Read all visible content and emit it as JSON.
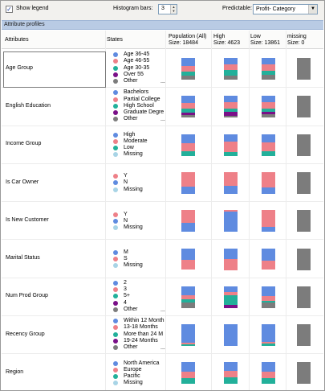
{
  "toolbar": {
    "show_legend_label": "Show legend",
    "show_legend_checked": true,
    "histogram_label": "Histogram bars:",
    "histogram_value": "3",
    "predictable_label": "Predictable:",
    "predictable_value": "Profit- Category"
  },
  "section_title": "Attribute profiles",
  "headers": {
    "attributes": "Attributes",
    "states": "States",
    "population": "Population (All)",
    "population_size": "Size: 18484",
    "high": "High",
    "high_size": "Size: 4623",
    "low": "Low",
    "low_size": "Size: 13861",
    "missing": "missing",
    "missing_size": "Size: 0"
  },
  "colors": {
    "blue": "#5f8be0",
    "pink": "#ee8088",
    "teal": "#22b09a",
    "purple": "#7a1088",
    "gray": "#7c7c7c",
    "lightblue": "#a8d4e6"
  },
  "ellipsis": "...",
  "rows": [
    {
      "attribute": "Age Group",
      "selected": true,
      "states": [
        {
          "label": "Age 36-45",
          "color": "blue"
        },
        {
          "label": "Age 46-55",
          "color": "pink"
        },
        {
          "label": "Age 30-35",
          "color": "teal"
        },
        {
          "label": "Over 55",
          "color": "purple"
        },
        {
          "label": "Other",
          "color": "gray"
        }
      ],
      "has_more": true,
      "bars": {
        "population": [
          {
            "c": "blue",
            "v": 0.36
          },
          {
            "c": "pink",
            "v": 0.28
          },
          {
            "c": "teal",
            "v": 0.18
          },
          {
            "c": "gray",
            "v": 0.18
          }
        ],
        "high": [
          {
            "c": "blue",
            "v": 0.28
          },
          {
            "c": "pink",
            "v": 0.28
          },
          {
            "c": "teal",
            "v": 0.24
          },
          {
            "c": "gray",
            "v": 0.2
          }
        ],
        "low": [
          {
            "c": "blue",
            "v": 0.3
          },
          {
            "c": "pink",
            "v": 0.3
          },
          {
            "c": "teal",
            "v": 0.18
          },
          {
            "c": "gray",
            "v": 0.22
          }
        ],
        "missing": [
          {
            "c": "gray",
            "v": 1.0
          }
        ]
      }
    },
    {
      "attribute": "English Education",
      "selected": false,
      "states": [
        {
          "label": "Bachelors",
          "color": "blue"
        },
        {
          "label": "Partial College",
          "color": "pink"
        },
        {
          "label": "High School",
          "color": "teal"
        },
        {
          "label": "Graduate Degre",
          "color": "purple"
        },
        {
          "label": "Other",
          "color": "gray"
        }
      ],
      "has_more": true,
      "bars": {
        "population": [
          {
            "c": "blue",
            "v": 0.32
          },
          {
            "c": "pink",
            "v": 0.28
          },
          {
            "c": "teal",
            "v": 0.18
          },
          {
            "c": "purple",
            "v": 0.1
          },
          {
            "c": "gray",
            "v": 0.12
          }
        ],
        "high": [
          {
            "c": "blue",
            "v": 0.3
          },
          {
            "c": "pink",
            "v": 0.3
          },
          {
            "c": "teal",
            "v": 0.12
          },
          {
            "c": "purple",
            "v": 0.18
          },
          {
            "c": "gray",
            "v": 0.1
          }
        ],
        "low": [
          {
            "c": "blue",
            "v": 0.28
          },
          {
            "c": "pink",
            "v": 0.3
          },
          {
            "c": "teal",
            "v": 0.16
          },
          {
            "c": "purple",
            "v": 0.12
          },
          {
            "c": "gray",
            "v": 0.14
          }
        ],
        "missing": [
          {
            "c": "gray",
            "v": 1.0
          }
        ]
      }
    },
    {
      "attribute": "Income Group",
      "selected": false,
      "states": [
        {
          "label": "High",
          "color": "blue"
        },
        {
          "label": "Moderate",
          "color": "pink"
        },
        {
          "label": "Low",
          "color": "teal"
        },
        {
          "label": "Missing",
          "color": "lightblue"
        }
      ],
      "has_more": false,
      "bars": {
        "population": [
          {
            "c": "blue",
            "v": 0.42
          },
          {
            "c": "pink",
            "v": 0.38
          },
          {
            "c": "teal",
            "v": 0.2
          }
        ],
        "high": [
          {
            "c": "blue",
            "v": 0.36
          },
          {
            "c": "pink",
            "v": 0.46
          },
          {
            "c": "teal",
            "v": 0.18
          }
        ],
        "low": [
          {
            "c": "blue",
            "v": 0.4
          },
          {
            "c": "pink",
            "v": 0.38
          },
          {
            "c": "teal",
            "v": 0.22
          }
        ],
        "missing": [
          {
            "c": "gray",
            "v": 1.0
          }
        ]
      }
    },
    {
      "attribute": "Is Car Owner",
      "selected": false,
      "states": [
        {
          "label": "Y",
          "color": "pink"
        },
        {
          "label": "N",
          "color": "blue"
        },
        {
          "label": "Missing",
          "color": "lightblue"
        }
      ],
      "has_more": false,
      "bars": {
        "population": [
          {
            "c": "pink",
            "v": 0.68
          },
          {
            "c": "blue",
            "v": 0.32
          }
        ],
        "high": [
          {
            "c": "pink",
            "v": 0.64
          },
          {
            "c": "blue",
            "v": 0.36
          }
        ],
        "low": [
          {
            "c": "pink",
            "v": 0.7
          },
          {
            "c": "blue",
            "v": 0.3
          }
        ],
        "missing": [
          {
            "c": "gray",
            "v": 1.0
          }
        ]
      }
    },
    {
      "attribute": "Is New Customer",
      "selected": false,
      "states": [
        {
          "label": "Y",
          "color": "pink"
        },
        {
          "label": "N",
          "color": "blue"
        },
        {
          "label": "Missing",
          "color": "lightblue"
        }
      ],
      "has_more": false,
      "bars": {
        "population": [
          {
            "c": "pink",
            "v": 0.6
          },
          {
            "c": "blue",
            "v": 0.4
          }
        ],
        "high": [
          {
            "c": "pink",
            "v": 0.06
          },
          {
            "c": "blue",
            "v": 0.94
          }
        ],
        "low": [
          {
            "c": "pink",
            "v": 0.78
          },
          {
            "c": "blue",
            "v": 0.22
          }
        ],
        "missing": [
          {
            "c": "gray",
            "v": 1.0
          }
        ]
      }
    },
    {
      "attribute": "Marital Status",
      "selected": false,
      "states": [
        {
          "label": "M",
          "color": "blue"
        },
        {
          "label": "S",
          "color": "pink"
        },
        {
          "label": "Missing",
          "color": "lightblue"
        }
      ],
      "has_more": false,
      "bars": {
        "population": [
          {
            "c": "blue",
            "v": 0.54
          },
          {
            "c": "pink",
            "v": 0.46
          }
        ],
        "high": [
          {
            "c": "blue",
            "v": 0.5
          },
          {
            "c": "pink",
            "v": 0.5
          }
        ],
        "low": [
          {
            "c": "blue",
            "v": 0.56
          },
          {
            "c": "pink",
            "v": 0.44
          }
        ],
        "missing": [
          {
            "c": "gray",
            "v": 1.0
          }
        ]
      }
    },
    {
      "attribute": "Num Prod Group",
      "selected": false,
      "states": [
        {
          "label": "2",
          "color": "blue"
        },
        {
          "label": "3",
          "color": "pink"
        },
        {
          "label": "5+",
          "color": "teal"
        },
        {
          "label": "4",
          "color": "purple"
        },
        {
          "label": "Other",
          "color": "gray"
        }
      ],
      "has_more": true,
      "bars": {
        "population": [
          {
            "c": "blue",
            "v": 0.4
          },
          {
            "c": "pink",
            "v": 0.2
          },
          {
            "c": "teal",
            "v": 0.14
          },
          {
            "c": "gray",
            "v": 0.26
          }
        ],
        "high": [
          {
            "c": "blue",
            "v": 0.26
          },
          {
            "c": "pink",
            "v": 0.16
          },
          {
            "c": "teal",
            "v": 0.44
          },
          {
            "c": "purple",
            "v": 0.14
          }
        ],
        "low": [
          {
            "c": "blue",
            "v": 0.44
          },
          {
            "c": "pink",
            "v": 0.22
          },
          {
            "c": "teal",
            "v": 0.1
          },
          {
            "c": "gray",
            "v": 0.24
          }
        ],
        "missing": [
          {
            "c": "gray",
            "v": 1.0
          }
        ]
      }
    },
    {
      "attribute": "Recency Group",
      "selected": false,
      "states": [
        {
          "label": "Within 12 Month",
          "color": "blue"
        },
        {
          "label": "13-18 Months",
          "color": "pink"
        },
        {
          "label": "More than 24 M",
          "color": "teal"
        },
        {
          "label": "19-24 Months",
          "color": "purple"
        },
        {
          "label": "Other",
          "color": "gray"
        }
      ],
      "has_more": true,
      "bars": {
        "population": [
          {
            "c": "blue",
            "v": 0.86
          },
          {
            "c": "pink",
            "v": 0.07
          },
          {
            "c": "teal",
            "v": 0.07
          }
        ],
        "high": [
          {
            "c": "blue",
            "v": 1.0
          }
        ],
        "low": [
          {
            "c": "blue",
            "v": 0.8
          },
          {
            "c": "pink",
            "v": 0.1
          },
          {
            "c": "teal",
            "v": 0.1
          }
        ],
        "missing": [
          {
            "c": "gray",
            "v": 1.0
          }
        ]
      }
    },
    {
      "attribute": "Region",
      "selected": false,
      "states": [
        {
          "label": "North America",
          "color": "blue"
        },
        {
          "label": "Europe",
          "color": "pink"
        },
        {
          "label": "Pacific",
          "color": "teal"
        },
        {
          "label": "Missing",
          "color": "lightblue"
        }
      ],
      "has_more": false,
      "bars": {
        "population": [
          {
            "c": "blue",
            "v": 0.42
          },
          {
            "c": "pink",
            "v": 0.3
          },
          {
            "c": "teal",
            "v": 0.28
          }
        ],
        "high": [
          {
            "c": "blue",
            "v": 0.38
          },
          {
            "c": "pink",
            "v": 0.32
          },
          {
            "c": "teal",
            "v": 0.3
          }
        ],
        "low": [
          {
            "c": "blue",
            "v": 0.44
          },
          {
            "c": "pink",
            "v": 0.3
          },
          {
            "c": "teal",
            "v": 0.26
          }
        ],
        "missing": [
          {
            "c": "gray",
            "v": 1.0
          }
        ]
      }
    }
  ]
}
